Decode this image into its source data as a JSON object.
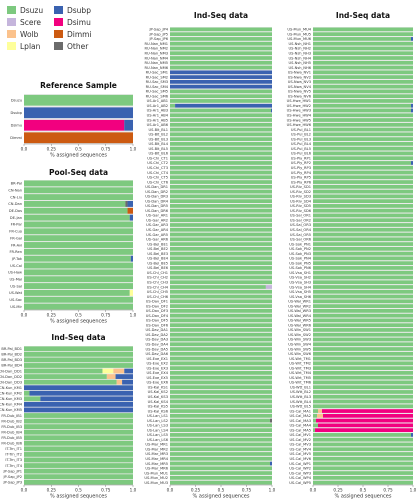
{
  "legend": {
    "items": [
      {
        "label": "Dsuzu",
        "color": "#7dc97f"
      },
      {
        "label": "Dsubp",
        "color": "#3a62b0"
      },
      {
        "label": "Scere",
        "color": "#c5b5dc"
      },
      {
        "label": "Dsimu",
        "color": "#f2007f"
      },
      {
        "label": "Wolb",
        "color": "#fbc28c"
      },
      {
        "label": "Dimmi",
        "color": "#cc5a11"
      },
      {
        "label": "Lplan",
        "color": "#feff9a"
      },
      {
        "label": "Other",
        "color": "#6b6b6b"
      }
    ]
  },
  "colors": {
    "Dsuzu": "#7dc97f",
    "Dsubp": "#3a62b0",
    "Scere": "#c5b5dc",
    "Dsimu": "#f2007f",
    "Wolb": "#fbc28c",
    "Dimmi": "#cc5a11",
    "Lplan": "#feff9a",
    "Other": "#6b6b6b"
  },
  "chart_data": [
    {
      "type": "bar",
      "orientation": "horizontal-stacked",
      "title": "Reference Sample",
      "xlabel": "% assigned sequences",
      "xlim": [
        0,
        1
      ],
      "xticks": [
        "0.0",
        "0.25",
        "0.5",
        "0.75",
        "1.0"
      ],
      "categories": [
        "Dsuzu",
        "Dsubp",
        "Dsimu",
        "Dimmi"
      ],
      "rows": [
        {
          "Dsuzu": 1
        },
        {
          "Dsubp": 1
        },
        {
          "Dsimu": 0.92,
          "Dsubp": 0.08
        },
        {
          "Dimmi": 1
        }
      ]
    },
    {
      "type": "bar",
      "orientation": "horizontal-stacked",
      "title": "Pool-Seq data",
      "xlabel": "% assigned sequences",
      "xlim": [
        0,
        1
      ],
      "xticks": [
        "0.0",
        "0.25",
        "0.5",
        "0.75",
        "1.0"
      ],
      "categories": [
        "BR-Pal",
        "CN-Nan",
        "CN-Liu",
        "CN-Dan",
        "DE-Dos",
        "DE-Jan",
        "FR-Par",
        "FR-Cuo",
        "FR-Gal",
        "FR-Avi",
        "FR-Ren",
        "JP-Tok",
        "US-Cal",
        "US-Haw",
        "US-Mai",
        "US-Sal",
        "US-Wat",
        "US-Sac",
        "US-Mir"
      ],
      "rows": [
        {
          "Dsuzu": 1
        },
        {
          "Dsuzu": 1
        },
        {
          "Dsuzu": 1
        },
        {
          "Dsuzu": 0.93,
          "Dsubp": 0.05,
          "Other": 0.02
        },
        {
          "Dsuzu": 0.95,
          "Dimmi": 0.05
        },
        {
          "Dsuzu": 0.97,
          "Dsubp": 0.03
        },
        {
          "Dsuzu": 1
        },
        {
          "Dsuzu": 1
        },
        {
          "Dsuzu": 1
        },
        {
          "Dsuzu": 1
        },
        {
          "Dsuzu": 1
        },
        {
          "Dsuzu": 0.98,
          "Dsubp": 0.02
        },
        {
          "Dsuzu": 1
        },
        {
          "Dsuzu": 1
        },
        {
          "Dsuzu": 1
        },
        {
          "Dsuzu": 1
        },
        {
          "Dsuzu": 0.97,
          "Lplan": 0.03
        },
        {
          "Dsuzu": 1
        },
        {
          "Dsuzu": 1
        }
      ]
    },
    {
      "type": "bar",
      "orientation": "horizontal-stacked",
      "title": "Ind-Seq data",
      "xlabel": "% assigned sequences",
      "xlim": [
        0,
        1
      ],
      "xticks": [
        "0.0",
        "0.25",
        "0.5",
        "0.75",
        "1.0"
      ],
      "categories": [
        "BR-Pal_BD1",
        "BR-Pal_BD2",
        "BR-Pal_BD3",
        "BR-Pal_BD4",
        "CN-Dan_DD1",
        "CN-Dan_DD2",
        "CN-Dan_DD3",
        "CN-Kun_KM1",
        "CN-Kun_KM2",
        "CN-Kun_KM3",
        "CN-Kun_KM4",
        "CN-Kun_KM5",
        "FR-Dub_IB1",
        "FR-Dub_IB2",
        "FR-Dub_IB3",
        "FR-Dub_IB4",
        "FR-Dub_IB5",
        "FR-Dub_IB6",
        "IT-Trn_IT1",
        "IT-Trn_IT2",
        "IT-Trn_IT3",
        "IT-Trn_IT4",
        "JP-Sap_JP1",
        "JP-Sap_JP2",
        "JP-Sap_JP3"
      ],
      "rows": [
        {
          "Dsuzu": 1
        },
        {
          "Dsuzu": 1
        },
        {
          "Dsuzu": 1
        },
        {
          "Dsuzu": 1
        },
        {
          "Dsuzu": 0.72,
          "Wolb": 0.1,
          "Lplan": 0.1,
          "Dsubp": 0.08
        },
        {
          "Dsuzu": 0.76,
          "Wolb": 0.08,
          "Dsubp": 0.16
        },
        {
          "Dsuzu": 0.85,
          "Wolb": 0.05,
          "Dsubp": 0.1
        },
        {
          "Dsubp": 1
        },
        {
          "Dsuzu": 0.05,
          "Dsubp": 0.95
        },
        {
          "Dsuzu": 0.15,
          "Dsubp": 0.85
        },
        {
          "Dsubp": 1
        },
        {
          "Dsubp": 1
        },
        {
          "Dsuzu": 1
        },
        {
          "Dsuzu": 1
        },
        {
          "Dsuzu": 1
        },
        {
          "Dsuzu": 1
        },
        {
          "Dsuzu": 1
        },
        {
          "Dsuzu": 1
        },
        {
          "Dsuzu": 1
        },
        {
          "Dsuzu": 1
        },
        {
          "Dsuzu": 1
        },
        {
          "Dsuzu": 1
        },
        {
          "Dsuzu": 1
        },
        {
          "Dsuzu": 1
        },
        {
          "Dsuzu": 1
        }
      ]
    },
    {
      "type": "bar",
      "orientation": "horizontal-stacked",
      "title": "Ind-Seq data",
      "xlabel": "% assigned sequences",
      "xlim": [
        0,
        1
      ],
      "xticks": [
        "0.0",
        "0.25",
        "0.5",
        "0.75",
        "1.0"
      ],
      "categories": [
        "JP-Sap_JP4",
        "JP-Sap_JP5",
        "JP-Sap_JP6",
        "RU-Nan_NM1",
        "RU-Nan_NM2",
        "RU-Nan_NM3",
        "RU-Nan_NM4",
        "RU-Nan_NM5",
        "RU-Nan_NM6",
        "RU-Sac_SM1",
        "RU-Sac_SM2",
        "RU-Sac_SM3",
        "RU-Sac_SM4",
        "RU-Sac_SM5",
        "RU-Sac_SM6",
        "US-Ar1_AB1",
        "US-Ar1_AB2",
        "US-Ar1_AB3",
        "US-Ar1_AB4",
        "US-Ar1_AB5",
        "US-Ar1_AB6",
        "US-Blt_BL1",
        "US-Blt_BL2",
        "US-Blt_BL3",
        "US-Blt_BL4",
        "US-Blt_BL5",
        "US-Blt_BL6",
        "US-Chi_CT1",
        "US-Chi_CT2",
        "US-Chi_CT3",
        "US-Chi_CT4",
        "US-Chi_CT5",
        "US-Chi_CT6",
        "US-Dan_DR1",
        "US-Dan_DR2",
        "US-Dan_DR3",
        "US-Dan_DR4",
        "US-Dan_DR5",
        "US-Dan_DR6",
        "US-Gar_AR1",
        "US-Gar_AR2",
        "US-Gar_AR3",
        "US-Gar_AR4",
        "US-Gar_AR5",
        "US-Gar_AR6",
        "US-Bel_BE1",
        "US-Bel_BE2",
        "US-Bel_BE3",
        "US-Bel_BE4",
        "US-Bel_BE5",
        "US-Bel_BE6",
        "US-Chl_CH1",
        "US-Chl_CH2",
        "US-Chl_CH3",
        "US-Chl_CH4",
        "US-Chl_CH5",
        "US-Chl_CH6",
        "US-Dav_DF1",
        "US-Dav_DF2",
        "US-Dav_DF3",
        "US-Dav_DF4",
        "US-Dav_DF5",
        "US-Dav_DF6",
        "US-Dav_DA1",
        "US-Dav_DA2",
        "US-Dav_DA3",
        "US-Dav_DA4",
        "US-Dav_DA5",
        "US-Dav_DA6",
        "US-Exe_EX1",
        "US-Exe_EX2",
        "US-Exe_EX3",
        "US-Exe_EX4",
        "US-Exe_EX5",
        "US-Exe_EX6",
        "US-Kal_KS1",
        "US-Kal_KS2",
        "US-Kal_KS3",
        "US-Kal_KS4",
        "US-Kal_KS5",
        "US-Kal_KS6",
        "US-Lan_LS1",
        "US-Lan_LS2",
        "US-Lan_LS3",
        "US-Lan_LS4",
        "US-Lan_LS5",
        "US-Lan_LS6",
        "US-Mar_MR1",
        "US-Mar_MR2",
        "US-Mar_MR3",
        "US-Mar_MR4",
        "US-Mar_MR5",
        "US-Mar_MR6",
        "US-Mun_MU1",
        "US-Mun_MU2",
        "US-Mun_MU3"
      ],
      "rows_rule": "Dsuzu = 1 for every row except those listed in exceptions",
      "exceptions": [
        {
          "row": "RU-Sac_SM1",
          "Dsubp": 1
        },
        {
          "row": "RU-Sac_SM2",
          "Dsubp": 1
        },
        {
          "row": "RU-Sac_SM3",
          "Dsubp": 1
        },
        {
          "row": "RU-Sac_SM4",
          "Dsubp": 1
        },
        {
          "row": "US-Ar1_AB2",
          "Dsuzu": 0.05,
          "Dsubp": 0.95
        },
        {
          "row": "US-Ar1_AB3",
          "Dsuzu": 0.99,
          "Dsubp": 0.01
        },
        {
          "row": "US-Chl_CH4",
          "Dsuzu": 0.94,
          "Scere": 0.06
        },
        {
          "row": "US-Lan_LS2",
          "Dsuzu": 0.98,
          "Other": 0.02
        },
        {
          "row": "US-Mar_MR5",
          "Dsuzu": 0.98,
          "Dsubp": 0.02
        }
      ]
    },
    {
      "type": "bar",
      "orientation": "horizontal-stacked",
      "title": "Ind-Seq data",
      "xlabel": "% assigned sequences",
      "xlim": [
        0,
        1
      ],
      "xticks": [
        "0.0",
        "0.25",
        "0.5",
        "0.75",
        "1.0"
      ],
      "categories": [
        "US-Mun_MU4",
        "US-Mun_MU5",
        "US-Mun_MU6",
        "US-Nsh_NH1",
        "US-Nsh_NH2",
        "US-Nsh_NH3",
        "US-Nsh_NH4",
        "US-Nsh_NH5",
        "US-Nsh_NH6",
        "US-Nwa_NV1",
        "US-Nwa_NV2",
        "US-Nwa_NV3",
        "US-Nwa_NV4",
        "US-Nwa_NV5",
        "US-Nwa_NV6",
        "US-Hwe_HW1",
        "US-Hwe_HW2",
        "US-Hwe_HW3",
        "US-Hwe_HW4",
        "US-Hwe_HW5",
        "US-Hwe_HW6",
        "US-Pul_BL1",
        "US-Pul_BL2",
        "US-Pul_BL3",
        "US-Pul_BL4",
        "US-Pul_BL5",
        "US-Pul_BL6",
        "US-Ply_RP1",
        "US-Ply_RP2",
        "US-Ply_RP3",
        "US-Ply_RP4",
        "US-Ply_RP5",
        "US-Ply_RP6",
        "US-Riv_SD1",
        "US-Riv_SD2",
        "US-Riv_SD3",
        "US-Riv_SD4",
        "US-Riv_SD5",
        "US-Riv_SD6",
        "US-Sal_OR1",
        "US-Sal_OR2",
        "US-Sal_OR3",
        "US-Sal_OR4",
        "US-Sal_OR5",
        "US-Sal_OR6",
        "US-Sok_PN1",
        "US-Sok_PN2",
        "US-Sok_PN3",
        "US-Sok_PN4",
        "US-Sok_PN5",
        "US-Sok_PN6",
        "US-Vsa_SH1",
        "US-Vsa_SH2",
        "US-Vsa_SH3",
        "US-Vsa_SH4",
        "US-Vsa_SH5",
        "US-Vsa_SH6",
        "US-Wal_WR1",
        "US-Wal_WR2",
        "US-Wal_WR3",
        "US-Wal_WR4",
        "US-Wal_WR5",
        "US-Wal_WR6",
        "US-Win_SW1",
        "US-Win_SW2",
        "US-Win_SW3",
        "US-Win_SW4",
        "US-Win_SW5",
        "US-Win_SW6",
        "US-Wrt_TM1",
        "US-Wrt_TM2",
        "US-Wrt_TM3",
        "US-Wrt_TM4",
        "US-Wrt_TM5",
        "US-Wrt_TM6",
        "US-Wtt_BL1",
        "US-Wtt_BL2",
        "US-Wtt_BL3",
        "US-Wtt_BL4",
        "US-Wtt_BL5",
        "US-Cal_MA1",
        "US-Cal_MA2",
        "US-Cal_MA3",
        "US-Cal_MA4",
        "US-Cal_MA5",
        "US-Cal_MV1",
        "US-Cal_MV2",
        "US-Cal_MV3",
        "US-Cal_MV4",
        "US-Cal_MV5",
        "US-Cal_MV6",
        "US-Cal_WP1",
        "US-Cal_WP2",
        "US-Cal_WP3",
        "US-Cal_WP4",
        "US-Cal_WP5"
      ],
      "rows_rule": "Dsuzu = 1 for every row except those listed in exceptions",
      "exceptions": [
        {
          "row": "US-Mun_MU6",
          "Dsuzu": 0.98,
          "Dsubp": 0.02
        },
        {
          "row": "US-Hwe_HW2",
          "Dsuzu": 0.98,
          "Dsubp": 0.02
        },
        {
          "row": "US-Hwe_HW3",
          "Dsuzu": 0.98,
          "Dsubp": 0.02
        },
        {
          "row": "US-Ply_RP2",
          "Dsuzu": 0.98,
          "Dsubp": 0.02
        },
        {
          "row": "US-Cal_MA1",
          "Dsuzu": 0.05,
          "Wolb": 0.04,
          "Dsimu": 0.91
        },
        {
          "row": "US-Cal_MA2",
          "Dsuzu": 0.04,
          "Wolb": 0.06,
          "Dsimu": 0.9
        },
        {
          "row": "US-Cal_MA3",
          "Dsuzu": 0.03,
          "Dsimu": 0.97
        },
        {
          "row": "US-Cal_MA4",
          "Dsuzu": 0.05,
          "Dsimu": 0.95
        },
        {
          "row": "US-Cal_MA5",
          "Dsuzu": 0.02,
          "Dsimu": 0.98
        },
        {
          "row": "US-Cal_MV1",
          "Dsuzu": 0.98,
          "Dsubp": 0.02
        }
      ]
    }
  ]
}
